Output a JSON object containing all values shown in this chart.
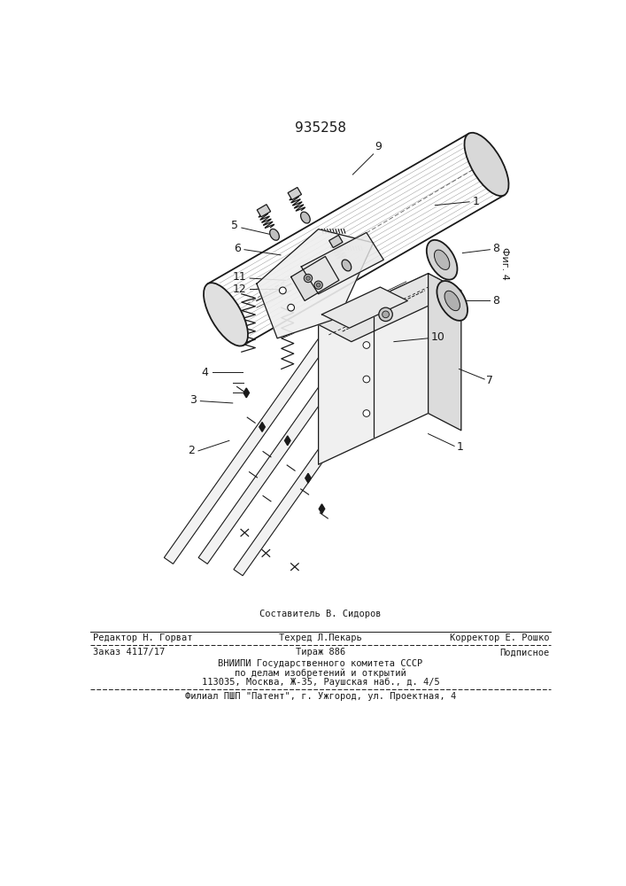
{
  "patent_number": "935258",
  "bg_color": "#ffffff",
  "drawing_color": "#1a1a1a",
  "footer": {
    "line1_left": "Редактор Н. Горват",
    "line1_center_top": "Составитель В. Сидоров",
    "line1_center_bot": "Техред Л.Пекарь",
    "line1_right": "Корректор Е. Рошко",
    "line2_left": "Заказ 4117/17",
    "line2_center": "Тираж 886",
    "line2_right": "Подписное",
    "line3": "ВНИИПИ Государственного комитета СССР",
    "line4": "по делам изобретений и открытий",
    "line5": "113035, Москва, Ж-35, Раушская наб., д. 4/5",
    "line6": "Филиал ПШП \"Патент\", г. Ужгород, ул. Проектная, 4"
  },
  "fig_label": "Фиг. 4"
}
